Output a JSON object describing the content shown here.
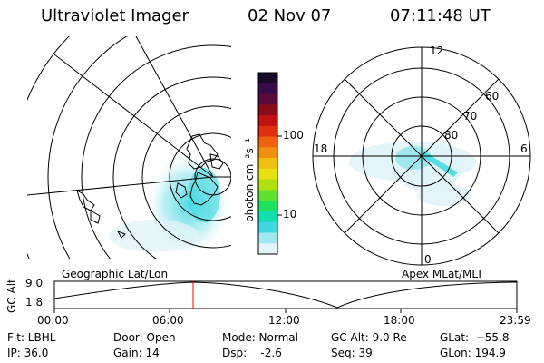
{
  "header": {
    "title": "Ultraviolet Imager",
    "date": "02 Nov 07",
    "time": "07:11:48 UT"
  },
  "colorbar": {
    "unit_label": "photon cm⁻²s⁻¹",
    "ticks": [
      "100",
      "10"
    ],
    "colors": [
      "#1a0a2a",
      "#3a0a4a",
      "#5a0a3a",
      "#8a0a1a",
      "#c01010",
      "#e03010",
      "#f06010",
      "#f09010",
      "#f0c010",
      "#e8e010",
      "#b0e010",
      "#60e030",
      "#20e060",
      "#10e0b0",
      "#40d8e0",
      "#a0e8f0",
      "#e0f4f8"
    ]
  },
  "left_panel": {
    "caption": "Geographic Lat/Lon"
  },
  "right_panel": {
    "caption": "Apex MLat/MLT",
    "mlt_labels": {
      "top": "12",
      "left": "18",
      "right": "6",
      "bottom": "0"
    },
    "lat_labels": [
      "60",
      "70",
      "80"
    ]
  },
  "timeline": {
    "ylabel": "GC Alt",
    "y_ticks": [
      "9.0",
      "1.8"
    ],
    "x_ticks": [
      "00:00",
      "06:00",
      "12:00",
      "18:00",
      "23:59"
    ],
    "current_time_marker": "07:11:48"
  },
  "info": {
    "flt": "Flt: LBHL",
    "ip": "IP: 36.0",
    "door": "Door: Open",
    "gain": "Gain: 14",
    "mode": "Mode: Normal",
    "dsp": "Dsp:    -2.6",
    "gcalt": "GC Alt: 9.0 Re",
    "seq": "Seq: 39",
    "glat": "GLat:  −55.8",
    "glon": "GLon: 194.9"
  }
}
